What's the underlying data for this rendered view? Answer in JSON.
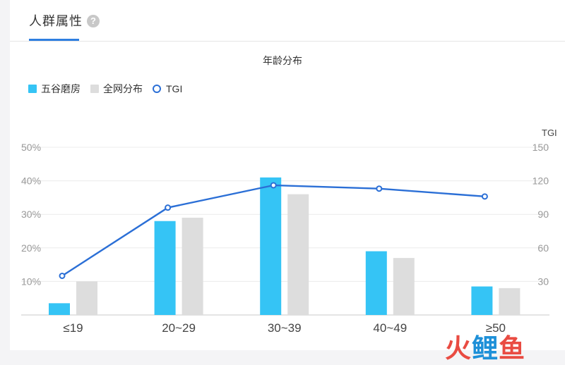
{
  "tabs": [
    {
      "label": "人群属性",
      "help": "?"
    }
  ],
  "chart_data": {
    "type": "bar",
    "title": "年龄分布",
    "categories": [
      "≤19",
      "20~29",
      "30~39",
      "40~49",
      "≥50"
    ],
    "series": [
      {
        "name": "五谷磨房",
        "kind": "bar",
        "axis": "left",
        "color": "#35c4f5",
        "values": [
          3.5,
          28,
          41,
          19,
          8.5
        ]
      },
      {
        "name": "全网分布",
        "kind": "bar",
        "axis": "left",
        "color": "#dddddd",
        "values": [
          10,
          29,
          36,
          17,
          8
        ]
      },
      {
        "name": "TGI",
        "kind": "line",
        "axis": "right",
        "color": "#2b6fd6",
        "values": [
          35,
          96,
          116,
          113,
          106
        ]
      }
    ],
    "y_left": {
      "min": 0,
      "max": 50,
      "ticks": [
        "50%",
        "40%",
        "30%",
        "20%",
        "10%"
      ]
    },
    "y_right": {
      "label": "TGI",
      "min": 0,
      "max": 150,
      "ticks": [
        "150",
        "120",
        "90",
        "60",
        "30"
      ]
    },
    "legend_position": "top-left",
    "grid": true
  },
  "watermark": {
    "part1": "火",
    "part2": "鲤",
    "part3": "鱼"
  }
}
